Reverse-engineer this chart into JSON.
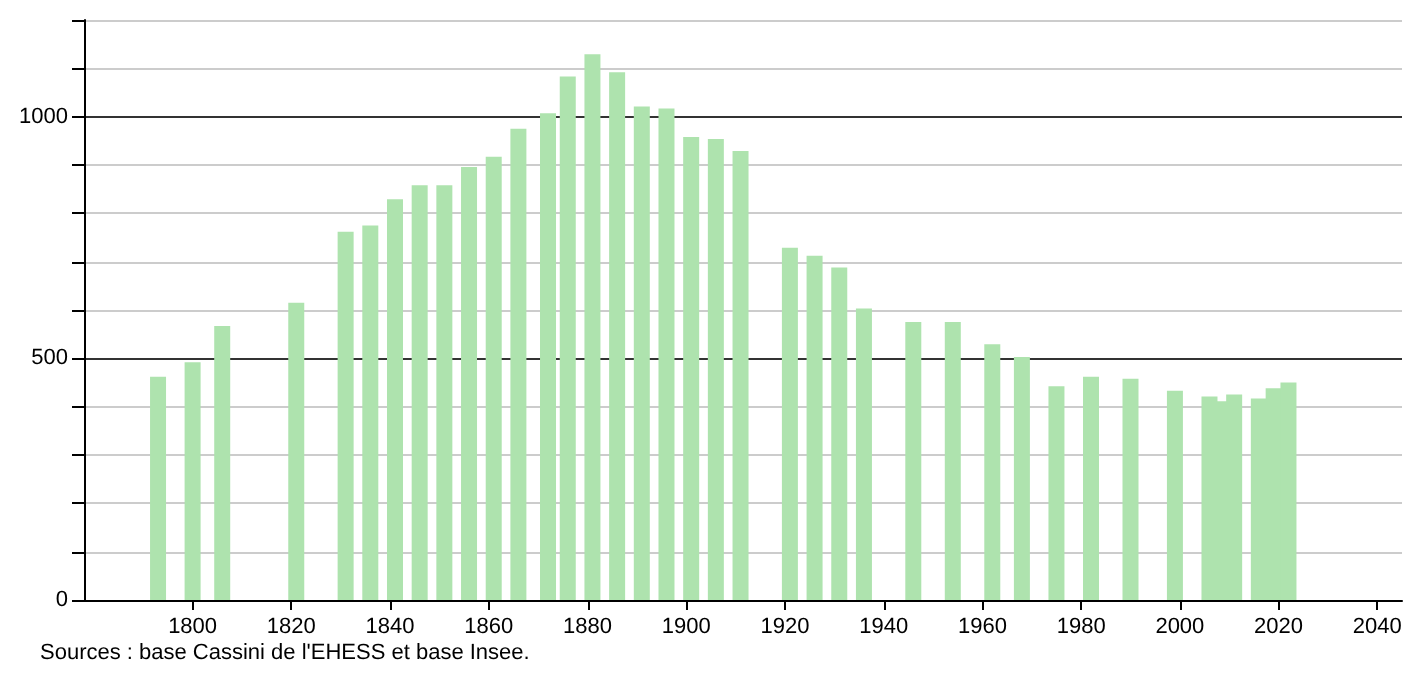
{
  "chart_data": {
    "type": "bar",
    "x": [
      1793,
      1800,
      1806,
      1821,
      1831,
      1836,
      1841,
      1846,
      1851,
      1856,
      1861,
      1866,
      1872,
      1876,
      1881,
      1886,
      1891,
      1896,
      1901,
      1906,
      1911,
      1921,
      1926,
      1931,
      1936,
      1946,
      1954,
      1962,
      1968,
      1975,
      1982,
      1990,
      1999,
      2006,
      2008,
      2011,
      2016,
      2019,
      2022
    ],
    "values": [
      462,
      492,
      567,
      615,
      762,
      775,
      829,
      858,
      858,
      896,
      917,
      975,
      1007,
      1083,
      1129,
      1092,
      1021,
      1017,
      958,
      954,
      929,
      729,
      712,
      688,
      603,
      575,
      575,
      529,
      503,
      442,
      462,
      458,
      433,
      421,
      411,
      425,
      417,
      438,
      450
    ],
    "color": "#aee3ae",
    "xlim": [
      1778,
      2045
    ],
    "xticks": [
      1800,
      1820,
      1840,
      1860,
      1880,
      1900,
      1920,
      1940,
      1960,
      1980,
      2000,
      2020,
      2040
    ],
    "ylim": [
      0,
      1200
    ],
    "yticks": [
      0,
      {
        "value": 100,
        "label": null
      },
      {
        "value": 200,
        "label": null
      },
      {
        "value": 300,
        "label": null
      },
      {
        "value": 400,
        "label": null
      },
      500,
      {
        "value": 600,
        "label": null
      },
      {
        "value": 700,
        "label": null
      },
      {
        "value": 800,
        "label": null
      },
      {
        "value": 900,
        "label": null
      },
      1000,
      {
        "value": 1100,
        "label": null
      },
      {
        "value": 1200,
        "label": null
      }
    ],
    "grid": "y",
    "annotations": [
      "Sources : base Cassini de l'EHESS et base Insee."
    ]
  }
}
